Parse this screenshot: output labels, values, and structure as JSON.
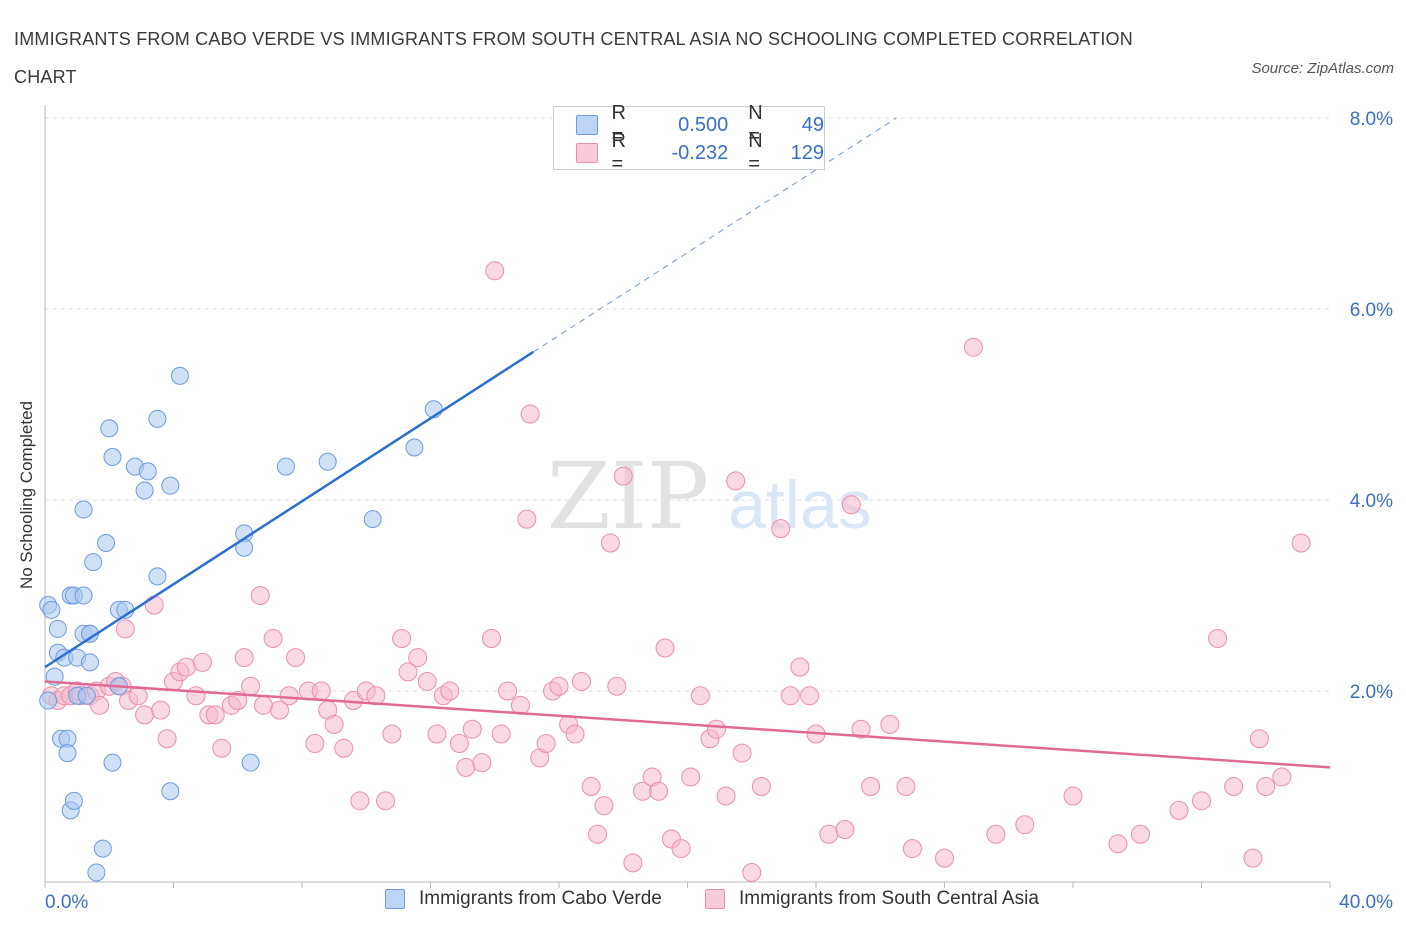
{
  "title": "IMMIGRANTS FROM CABO VERDE VS IMMIGRANTS FROM SOUTH CENTRAL ASIA NO SCHOOLING COMPLETED CORRELATION CHART",
  "source": "Source: ZipAtlas.com",
  "watermark": {
    "zip": "ZIP",
    "atlas": "atlas"
  },
  "legend": {
    "r_label": "R =",
    "n_label": "N =",
    "rows": [
      {
        "r": "0.500",
        "n": "49"
      },
      {
        "r": "-0.232",
        "n": "129"
      }
    ]
  },
  "colors": {
    "blue_fill": "#a9c8f0",
    "blue_stroke": "#6c9be0",
    "blue_line": "#2d6fd0",
    "pink_fill": "#f6b9cc",
    "pink_stroke": "#ec8fac",
    "pink_line": "#e06a96",
    "tick_label": "#3b6fc6",
    "grid": "#dddddd"
  },
  "chart_data": {
    "type": "scatter",
    "title": "IMMIGRANTS FROM CABO VERDE VS IMMIGRANTS FROM SOUTH CENTRAL ASIA NO SCHOOLING COMPLETED CORRELATION CHART",
    "xlabel": "",
    "ylabel": "No Schooling Completed",
    "xlim": [
      0,
      40
    ],
    "ylim": [
      0,
      8
    ],
    "x_tick_labels": [
      "0.0%",
      "40.0%"
    ],
    "y_tick_labels": [
      "2.0%",
      "4.0%",
      "6.0%",
      "8.0%"
    ],
    "y_ticks": [
      2,
      4,
      6,
      8
    ],
    "grid": true,
    "legend_position": "top-center",
    "series": [
      {
        "name": "Immigrants from Cabo Verde",
        "color": "#a9c8f0",
        "trend": {
          "x": [
            0,
            15.2
          ],
          "y": [
            2.25,
            5.55
          ],
          "extended_to": [
            26.5,
            8.0
          ]
        },
        "points": [
          [
            0.1,
            1.9
          ],
          [
            0.1,
            2.9
          ],
          [
            0.2,
            2.85
          ],
          [
            0.3,
            2.15
          ],
          [
            0.4,
            2.65
          ],
          [
            0.4,
            2.4
          ],
          [
            0.5,
            1.5
          ],
          [
            0.6,
            2.35
          ],
          [
            0.7,
            1.5
          ],
          [
            0.7,
            1.35
          ],
          [
            0.8,
            3.0
          ],
          [
            0.8,
            0.75
          ],
          [
            0.9,
            3.0
          ],
          [
            0.9,
            0.85
          ],
          [
            1.0,
            1.95
          ],
          [
            1.0,
            2.35
          ],
          [
            1.2,
            3.9
          ],
          [
            1.3,
            1.95
          ],
          [
            1.2,
            3.0
          ],
          [
            1.2,
            2.6
          ],
          [
            1.4,
            2.6
          ],
          [
            1.4,
            2.3
          ],
          [
            1.4,
            2.6
          ],
          [
            1.5,
            3.35
          ],
          [
            1.6,
            0.1
          ],
          [
            1.8,
            0.35
          ],
          [
            1.9,
            3.55
          ],
          [
            2.0,
            4.75
          ],
          [
            2.1,
            4.45
          ],
          [
            2.1,
            1.25
          ],
          [
            2.3,
            2.05
          ],
          [
            2.3,
            2.85
          ],
          [
            2.5,
            2.85
          ],
          [
            2.8,
            4.35
          ],
          [
            3.1,
            4.1
          ],
          [
            3.2,
            4.3
          ],
          [
            3.5,
            3.2
          ],
          [
            3.5,
            4.85
          ],
          [
            3.9,
            4.15
          ],
          [
            3.9,
            0.95
          ],
          [
            4.2,
            5.3
          ],
          [
            6.2,
            3.65
          ],
          [
            6.2,
            3.5
          ],
          [
            6.4,
            1.25
          ],
          [
            7.5,
            4.35
          ],
          [
            8.8,
            4.4
          ],
          [
            10.2,
            3.8
          ],
          [
            11.5,
            4.55
          ],
          [
            12.1,
            4.95
          ]
        ]
      },
      {
        "name": "Immigrants from South Central Asia",
        "color": "#f6b9cc",
        "trend": {
          "x": [
            0,
            40
          ],
          "y": [
            2.1,
            1.2
          ]
        },
        "points": [
          [
            0.2,
            1.95
          ],
          [
            0.4,
            1.9
          ],
          [
            0.6,
            1.95
          ],
          [
            0.8,
            1.95
          ],
          [
            1.0,
            2.0
          ],
          [
            1.1,
            1.95
          ],
          [
            1.4,
            1.95
          ],
          [
            1.6,
            2.0
          ],
          [
            1.7,
            1.85
          ],
          [
            2.0,
            2.05
          ],
          [
            2.2,
            2.1
          ],
          [
            2.4,
            2.05
          ],
          [
            2.5,
            2.65
          ],
          [
            2.6,
            1.9
          ],
          [
            2.9,
            1.95
          ],
          [
            3.1,
            1.75
          ],
          [
            3.4,
            2.9
          ],
          [
            3.6,
            1.8
          ],
          [
            3.8,
            1.5
          ],
          [
            4.0,
            2.1
          ],
          [
            4.2,
            2.2
          ],
          [
            4.4,
            2.25
          ],
          [
            4.7,
            1.95
          ],
          [
            4.9,
            2.3
          ],
          [
            5.1,
            1.75
          ],
          [
            5.3,
            1.75
          ],
          [
            5.5,
            1.4
          ],
          [
            5.8,
            1.85
          ],
          [
            6.0,
            1.9
          ],
          [
            6.2,
            2.35
          ],
          [
            6.4,
            2.05
          ],
          [
            6.7,
            3.0
          ],
          [
            6.8,
            1.85
          ],
          [
            7.1,
            2.55
          ],
          [
            7.3,
            1.8
          ],
          [
            7.6,
            1.95
          ],
          [
            7.8,
            2.35
          ],
          [
            8.2,
            2.0
          ],
          [
            8.4,
            1.45
          ],
          [
            8.6,
            2.0
          ],
          [
            8.8,
            1.8
          ],
          [
            9.0,
            1.65
          ],
          [
            9.3,
            1.4
          ],
          [
            9.6,
            1.9
          ],
          [
            9.8,
            0.85
          ],
          [
            10.0,
            2.0
          ],
          [
            10.3,
            1.95
          ],
          [
            10.6,
            0.85
          ],
          [
            10.8,
            1.55
          ],
          [
            11.1,
            2.55
          ],
          [
            11.3,
            2.2
          ],
          [
            11.6,
            2.35
          ],
          [
            11.9,
            2.1
          ],
          [
            12.2,
            1.55
          ],
          [
            12.4,
            1.95
          ],
          [
            12.6,
            2.0
          ],
          [
            12.9,
            1.45
          ],
          [
            13.1,
            1.2
          ],
          [
            13.3,
            1.6
          ],
          [
            13.6,
            1.25
          ],
          [
            13.9,
            2.55
          ],
          [
            14.2,
            1.55
          ],
          [
            14.4,
            2.0
          ],
          [
            14.8,
            1.85
          ],
          [
            15.0,
            3.8
          ],
          [
            15.1,
            4.9
          ],
          [
            14.0,
            6.4
          ],
          [
            15.4,
            1.3
          ],
          [
            15.6,
            1.45
          ],
          [
            15.8,
            2.0
          ],
          [
            16.0,
            2.05
          ],
          [
            16.3,
            1.65
          ],
          [
            16.5,
            1.55
          ],
          [
            16.7,
            2.1
          ],
          [
            17.0,
            1.0
          ],
          [
            17.2,
            0.5
          ],
          [
            17.4,
            0.8
          ],
          [
            17.6,
            3.55
          ],
          [
            17.8,
            2.05
          ],
          [
            18.0,
            4.25
          ],
          [
            18.3,
            0.2
          ],
          [
            18.6,
            0.95
          ],
          [
            18.9,
            1.1
          ],
          [
            19.1,
            0.95
          ],
          [
            19.3,
            2.45
          ],
          [
            19.5,
            0.45
          ],
          [
            19.8,
            0.35
          ],
          [
            20.1,
            1.1
          ],
          [
            20.4,
            1.95
          ],
          [
            20.7,
            1.5
          ],
          [
            20.9,
            1.6
          ],
          [
            21.2,
            0.9
          ],
          [
            21.5,
            4.2
          ],
          [
            21.7,
            1.35
          ],
          [
            22.0,
            0.1
          ],
          [
            22.3,
            1.0
          ],
          [
            22.9,
            3.7
          ],
          [
            23.2,
            1.95
          ],
          [
            23.5,
            2.25
          ],
          [
            23.8,
            1.95
          ],
          [
            24.0,
            1.55
          ],
          [
            24.4,
            0.5
          ],
          [
            24.9,
            0.55
          ],
          [
            25.1,
            3.95
          ],
          [
            25.4,
            1.6
          ],
          [
            25.7,
            1.0
          ],
          [
            26.3,
            1.65
          ],
          [
            26.8,
            1.0
          ],
          [
            27.0,
            0.35
          ],
          [
            28.0,
            0.25
          ],
          [
            28.9,
            5.6
          ],
          [
            29.6,
            0.5
          ],
          [
            30.5,
            0.6
          ],
          [
            32.0,
            0.9
          ],
          [
            33.4,
            0.4
          ],
          [
            34.1,
            0.5
          ],
          [
            35.3,
            0.75
          ],
          [
            36.0,
            0.85
          ],
          [
            36.5,
            2.55
          ],
          [
            37.0,
            1.0
          ],
          [
            37.6,
            0.25
          ],
          [
            37.8,
            1.5
          ],
          [
            38.0,
            1.0
          ],
          [
            38.5,
            1.1
          ],
          [
            39.1,
            3.55
          ]
        ]
      }
    ]
  },
  "bottom_legend": [
    {
      "label": "Immigrants from Cabo Verde"
    },
    {
      "label": "Immigrants from South Central Asia"
    }
  ]
}
